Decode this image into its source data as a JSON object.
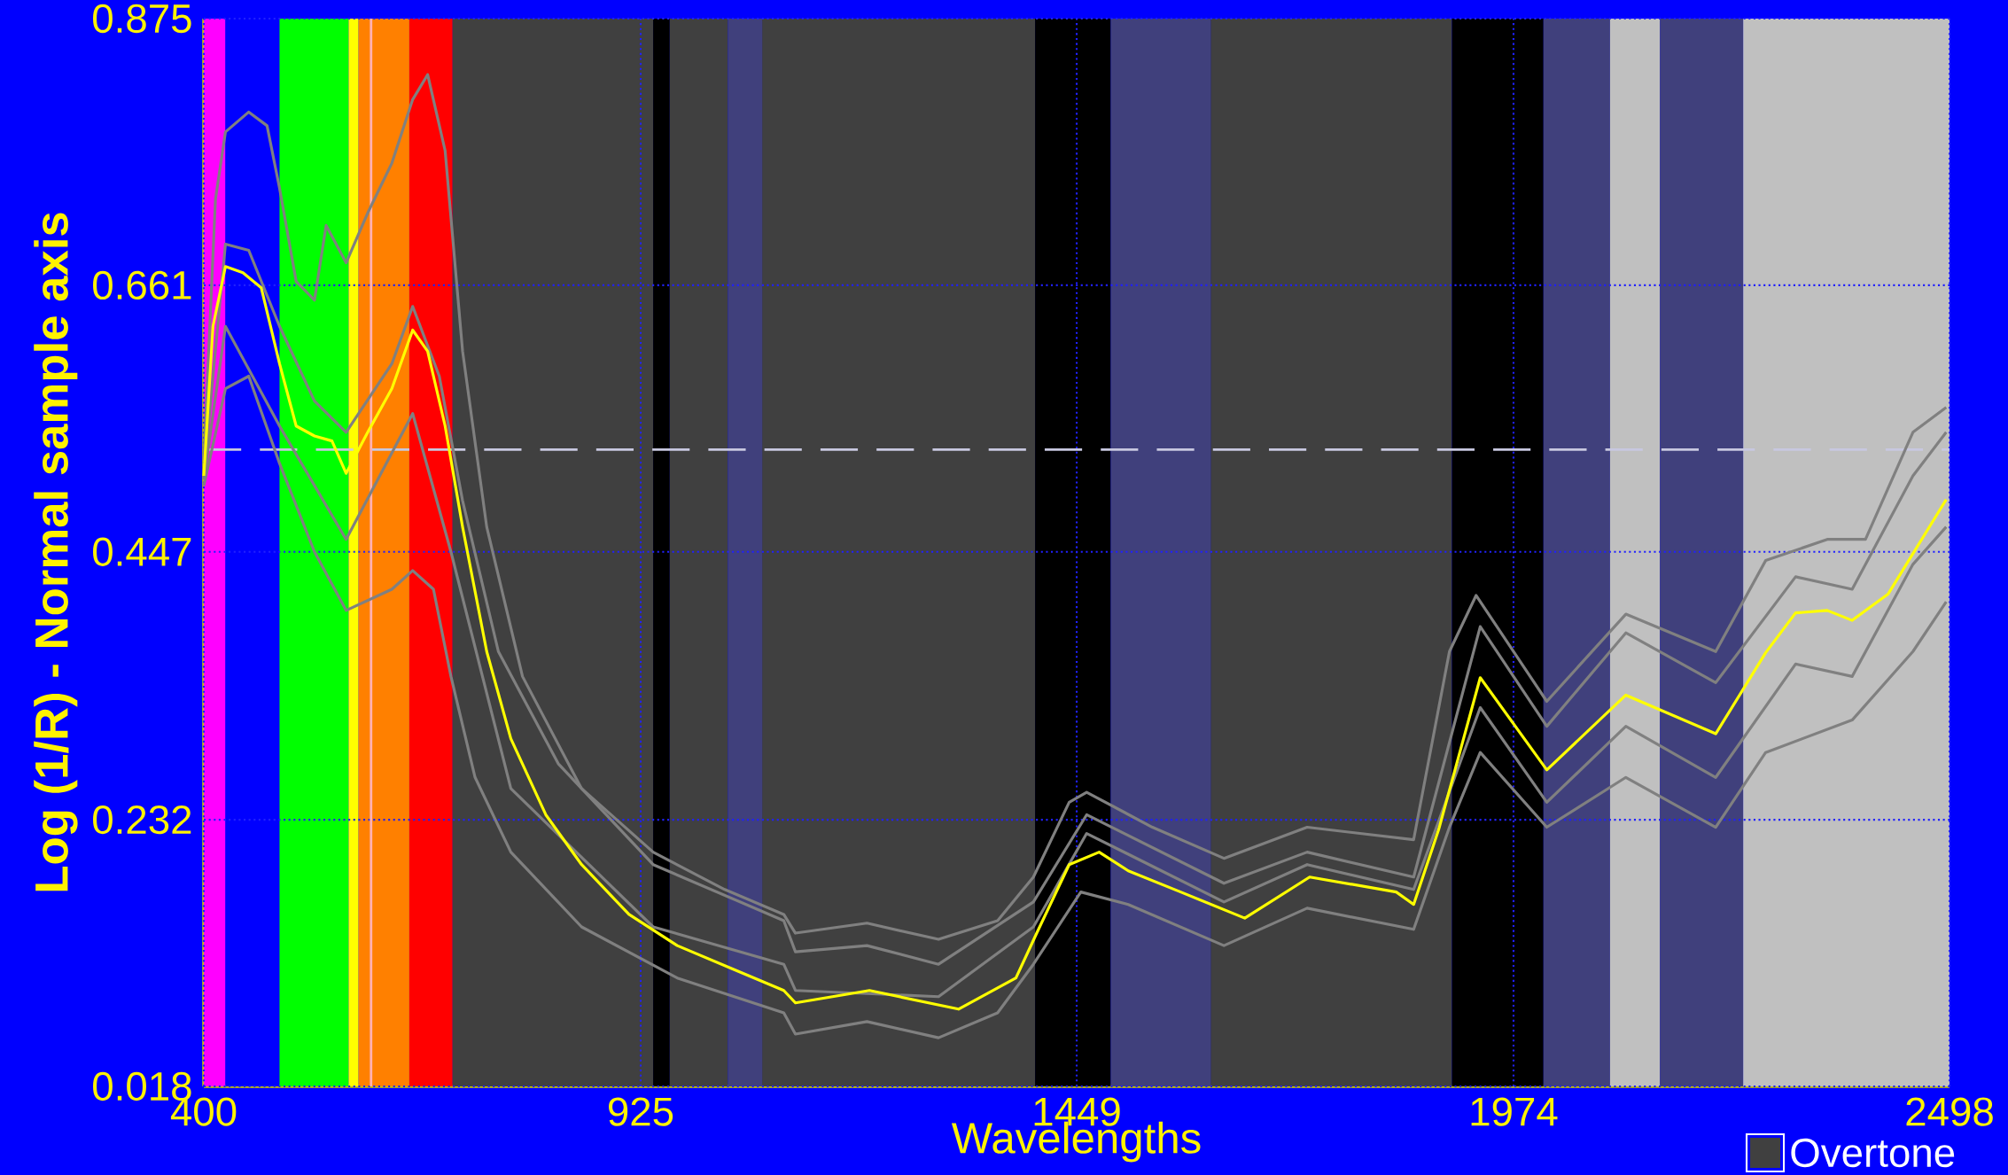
{
  "chart_data": {
    "type": "line",
    "xlabel": "Wavelengths",
    "ylabel": "Log (1/R) - Normal sample axis",
    "xlim": [
      400,
      2498
    ],
    "ylim": [
      0.018,
      0.875
    ],
    "xticks": [
      400,
      925,
      1449,
      1974,
      2498
    ],
    "yticks": [
      0.018,
      0.232,
      0.447,
      0.661,
      0.875
    ],
    "grid": true,
    "legend": "bottom right",
    "line_style": "solid",
    "marker": "none",
    "ref_lines": [
      {
        "axis": "y",
        "value": 0.529,
        "color": "#c8c8e0",
        "line_style": "dashed"
      },
      {
        "axis": "x",
        "value": 601,
        "color": "#ffb0b0",
        "line_style": "solid"
      }
    ],
    "bands": [
      {
        "axis": "x",
        "from": 400,
        "to": 426,
        "color": "#ff00ff"
      },
      {
        "axis": "x",
        "from": 426,
        "to": 491,
        "color": "#0000ff"
      },
      {
        "axis": "x",
        "from": 491,
        "to": 574,
        "color": "#00ff00"
      },
      {
        "axis": "x",
        "from": 574,
        "to": 586,
        "color": "#ffff00"
      },
      {
        "axis": "x",
        "from": 586,
        "to": 647,
        "color": "#ff8000"
      },
      {
        "axis": "x",
        "from": 647,
        "to": 699,
        "color": "#ff0000"
      },
      {
        "axis": "x",
        "from": 699,
        "to": 940,
        "color": "#404040",
        "label": "Overtone"
      },
      {
        "axis": "x",
        "from": 940,
        "to": 960,
        "color": "#000000"
      },
      {
        "axis": "x",
        "from": 960,
        "to": 1030,
        "color": "#404040"
      },
      {
        "axis": "x",
        "from": 1030,
        "to": 1071,
        "color": "#40407c"
      },
      {
        "axis": "x",
        "from": 1071,
        "to": 1399,
        "color": "#404040"
      },
      {
        "axis": "x",
        "from": 1399,
        "to": 1490,
        "color": "#000000"
      },
      {
        "axis": "x",
        "from": 1490,
        "to": 1610,
        "color": "#40407c"
      },
      {
        "axis": "x",
        "from": 1610,
        "to": 1900,
        "color": "#404040"
      },
      {
        "axis": "x",
        "from": 1900,
        "to": 2010,
        "color": "#000000"
      },
      {
        "axis": "x",
        "from": 2010,
        "to": 2090,
        "color": "#40407c"
      },
      {
        "axis": "x",
        "from": 2090,
        "to": 2150,
        "color": "#c0c0c0"
      },
      {
        "axis": "x",
        "from": 2150,
        "to": 2250,
        "color": "#40407c"
      },
      {
        "axis": "x",
        "from": 2250,
        "to": 2498,
        "color": "#c0c0c0"
      }
    ],
    "series": [
      {
        "color": "#808080",
        "x": [
          400,
          414,
          426,
          454,
          476,
          491,
          511,
          533,
          547,
          571,
          597,
          626,
          651,
          669,
          690,
          711,
          740,
          783,
          854,
          940,
          1026,
          1097,
          1111,
          1197,
          1283,
          1354,
          1397,
          1440,
          1461,
          1540,
          1626,
          1726,
          1854,
          1897,
          1929,
          2014,
          2109,
          2217,
          2277,
          2351,
          2397,
          2454,
          2494
        ],
        "values": [
          0.52,
          0.73,
          0.784,
          0.8,
          0.789,
          0.739,
          0.664,
          0.649,
          0.709,
          0.679,
          0.719,
          0.759,
          0.81,
          0.83,
          0.769,
          0.608,
          0.467,
          0.347,
          0.257,
          0.206,
          0.176,
          0.156,
          0.141,
          0.149,
          0.136,
          0.151,
          0.186,
          0.246,
          0.254,
          0.226,
          0.201,
          0.226,
          0.216,
          0.367,
          0.412,
          0.327,
          0.397,
          0.367,
          0.44,
          0.457,
          0.457,
          0.543,
          0.563
        ]
      },
      {
        "color": "#808080",
        "x": [
          400,
          426,
          454,
          491,
          533,
          571,
          626,
          651,
          676,
          697,
          726,
          769,
          854,
          969,
          1097,
          1111,
          1197,
          1283,
          1354,
          1397,
          1454,
          1511,
          1626,
          1726,
          1854,
          1897,
          1934,
          2014,
          2109,
          2217,
          2277,
          2381,
          2454,
          2494
        ],
        "values": [
          0.5,
          0.578,
          0.588,
          0.518,
          0.447,
          0.4,
          0.417,
          0.432,
          0.417,
          0.347,
          0.266,
          0.206,
          0.146,
          0.105,
          0.077,
          0.06,
          0.07,
          0.057,
          0.077,
          0.116,
          0.174,
          0.164,
          0.131,
          0.161,
          0.144,
          0.226,
          0.286,
          0.226,
          0.266,
          0.226,
          0.286,
          0.312,
          0.367,
          0.407
        ]
      },
      {
        "color": "#808080",
        "x": [
          400,
          426,
          454,
          491,
          533,
          571,
          626,
          651,
          683,
          711,
          754,
          826,
          940,
          1097,
          1111,
          1197,
          1283,
          1397,
          1461,
          1626,
          1726,
          1854,
          1934,
          2014,
          2109,
          2217,
          2313,
          2381,
          2454,
          2494
        ],
        "values": [
          0.51,
          0.694,
          0.689,
          0.628,
          0.568,
          0.543,
          0.598,
          0.644,
          0.588,
          0.488,
          0.367,
          0.277,
          0.196,
          0.151,
          0.126,
          0.131,
          0.116,
          0.166,
          0.236,
          0.181,
          0.206,
          0.186,
          0.387,
          0.307,
          0.382,
          0.342,
          0.427,
          0.417,
          0.508,
          0.543
        ]
      },
      {
        "color": "#808080",
        "x": [
          400,
          426,
          491,
          571,
          651,
          697,
          769,
          940,
          1097,
          1111,
          1283,
          1397,
          1461,
          1626,
          1726,
          1854,
          1934,
          2014,
          2109,
          2217,
          2313,
          2381,
          2454,
          2494
        ],
        "values": [
          0.505,
          0.628,
          0.548,
          0.457,
          0.558,
          0.447,
          0.257,
          0.146,
          0.116,
          0.095,
          0.09,
          0.146,
          0.221,
          0.166,
          0.196,
          0.176,
          0.322,
          0.246,
          0.307,
          0.266,
          0.357,
          0.347,
          0.437,
          0.467
        ]
      },
      {
        "color": "#ffff00",
        "x": [
          400,
          411,
          426,
          447,
          469,
          491,
          511,
          533,
          554,
          571,
          597,
          626,
          651,
          669,
          690,
          711,
          740,
          769,
          811,
          854,
          911,
          969,
          1040,
          1097,
          1111,
          1200,
          1307,
          1376,
          1401,
          1440,
          1476,
          1511,
          1574,
          1651,
          1729,
          1833,
          1854,
          1884,
          1934,
          2014,
          2109,
          2217,
          2277,
          2313,
          2351,
          2381,
          2424,
          2494
        ],
        "values": [
          0.508,
          0.628,
          0.676,
          0.671,
          0.659,
          0.598,
          0.548,
          0.54,
          0.536,
          0.51,
          0.543,
          0.578,
          0.625,
          0.608,
          0.548,
          0.467,
          0.367,
          0.297,
          0.236,
          0.196,
          0.156,
          0.131,
          0.111,
          0.095,
          0.085,
          0.095,
          0.08,
          0.105,
          0.141,
          0.196,
          0.206,
          0.191,
          0.174,
          0.153,
          0.186,
          0.174,
          0.164,
          0.224,
          0.346,
          0.272,
          0.332,
          0.301,
          0.366,
          0.398,
          0.4,
          0.392,
          0.413,
          0.489
        ]
      }
    ]
  }
}
